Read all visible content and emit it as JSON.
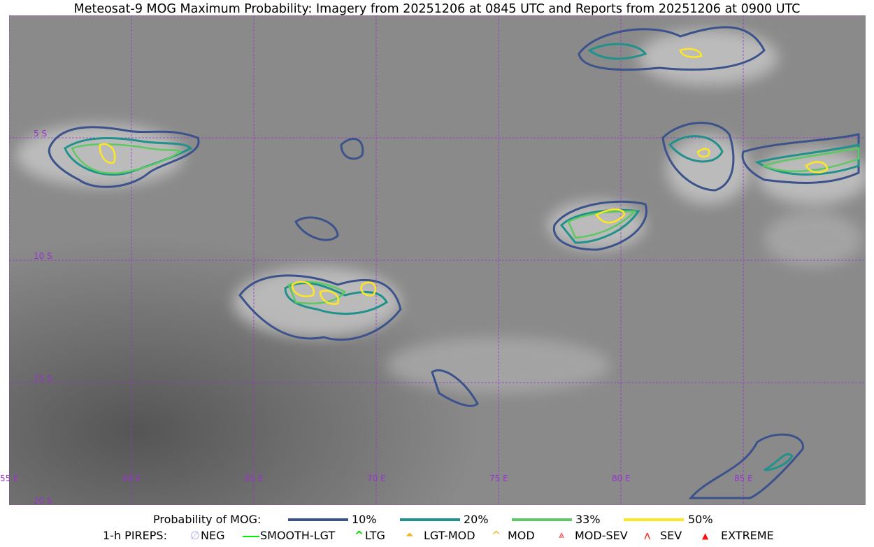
{
  "title": "Meteosat-9 MOG Maximum Probability: Imagery from 20251206 at 0845 UTC and Reports from 20251206 at 0900 UTC",
  "map": {
    "longitude_labels": [
      "55 E",
      "60 E",
      "65 E",
      "70 E",
      "75 E",
      "80 E",
      "85 E"
    ],
    "latitude_labels": [
      "5 S",
      "10 S",
      "15 S",
      "20 S"
    ],
    "grid_color": "#9933cc"
  },
  "legend": {
    "probability": {
      "label": "Probability of MOG:",
      "levels": [
        {
          "label": "10%",
          "color": "#3b528b"
        },
        {
          "label": "20%",
          "color": "#21918c"
        },
        {
          "label": "33%",
          "color": "#5ec962"
        },
        {
          "label": "50%",
          "color": "#fde725"
        }
      ]
    },
    "pireps": {
      "label": "1-h PIREPS:",
      "items": [
        {
          "label": "NEG",
          "icon": "neg-icon",
          "color": "#b0b0f0"
        },
        {
          "label": "SMOOTH-LGT",
          "icon": "line-icon",
          "color": "#00ee00"
        },
        {
          "label": "LTG",
          "icon": "caret-icon",
          "color": "#00dd00"
        },
        {
          "label": "LGT-MOD",
          "icon": "hat-icon",
          "color": "#f5b020"
        },
        {
          "label": "MOD",
          "icon": "caret-icon",
          "color": "#f5b020"
        },
        {
          "label": "MOD-SEV",
          "icon": "double-hat-icon",
          "color": "#ff3030"
        },
        {
          "label": "SEV",
          "icon": "double-caret-icon",
          "color": "#ff3030"
        },
        {
          "label": "EXTREME",
          "icon": "filled-triangle-icon",
          "color": "#ff1010"
        }
      ]
    }
  }
}
